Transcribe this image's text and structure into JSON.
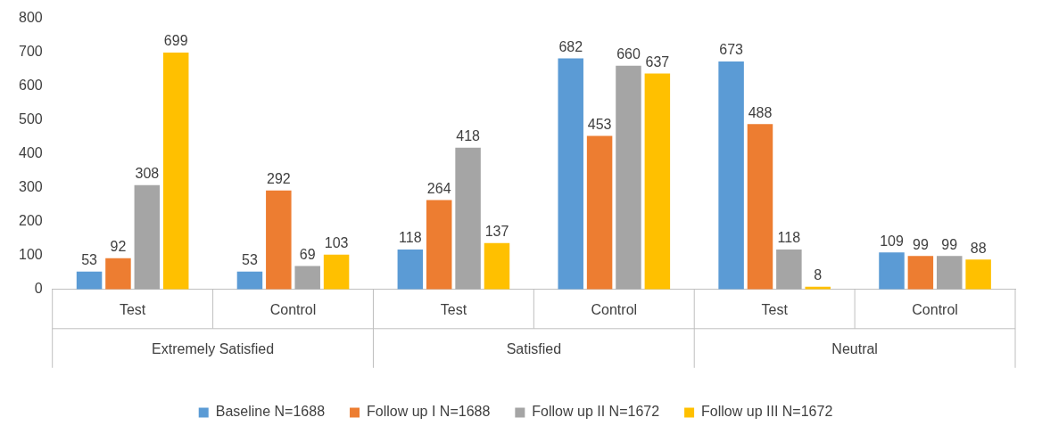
{
  "chart_data": {
    "type": "bar",
    "categories": [
      "Test",
      "Control",
      "Test",
      "Control",
      "Test",
      "Control"
    ],
    "series": [
      {
        "name": "Baseline N=1688",
        "color": "#5b9bd5",
        "values": [
          53,
          53,
          118,
          682,
          673,
          109
        ]
      },
      {
        "name": "Follow up I N=1688",
        "color": "#ed7d31",
        "values": [
          92,
          292,
          264,
          453,
          488,
          99
        ]
      },
      {
        "name": "Follow up II N=1672",
        "color": "#a5a5a5",
        "values": [
          308,
          69,
          418,
          660,
          118,
          99
        ]
      },
      {
        "name": "Follow up III N=1672",
        "color": "#ffc000",
        "values": [
          699,
          103,
          137,
          637,
          8,
          88
        ]
      }
    ],
    "annotations": [
      "Extremely Satisfied",
      "Satisfied",
      "Neutral"
    ],
    "ylim": [
      0,
      800
    ],
    "yticks": [
      0,
      100,
      200,
      300,
      400,
      500,
      600,
      700,
      800
    ],
    "grid": false,
    "legend": "bottom",
    "data_labels": true
  }
}
